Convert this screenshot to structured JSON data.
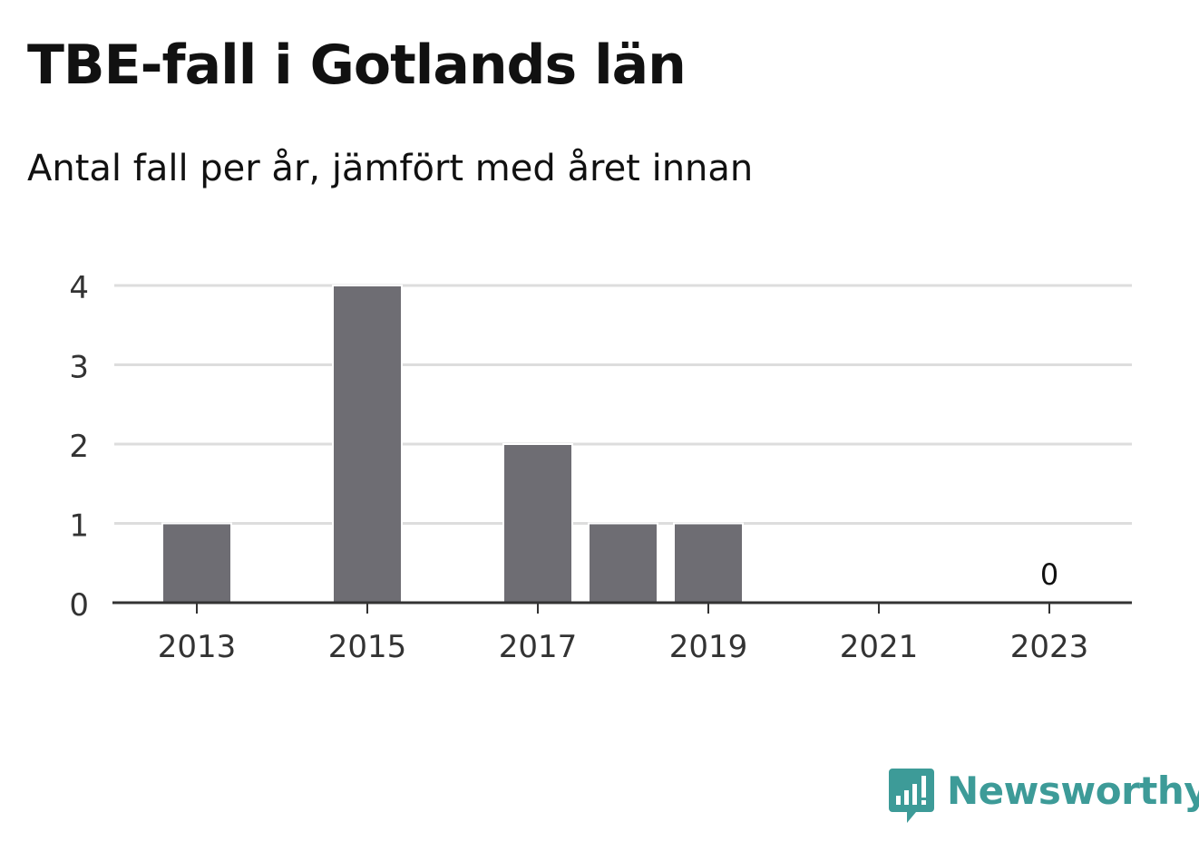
{
  "header": {
    "title": "TBE-fall i Gotlands län",
    "subtitle": "Antal fall per år, jämfört med året innan"
  },
  "chart_data": {
    "type": "bar",
    "title": "TBE-fall i Gotlands län",
    "subtitle": "Antal fall per år, jämfört med året innan",
    "categories": [
      2013,
      2014,
      2015,
      2016,
      2017,
      2018,
      2019,
      2020,
      2021,
      2022,
      2023
    ],
    "values": [
      1,
      0,
      4,
      0,
      2,
      1,
      1,
      0,
      0,
      0,
      0
    ],
    "xticks": [
      "2013",
      "2015",
      "2017",
      "2019",
      "2021",
      "2023"
    ],
    "yticks": [
      0,
      1,
      2,
      3,
      4
    ],
    "ylim": [
      0,
      4
    ],
    "xlabel": "",
    "ylabel": "",
    "grid": true,
    "bar_color": "#6e6d73",
    "grid_color": "#dddddd",
    "annotations": [
      {
        "x": 2023,
        "text": "0"
      }
    ]
  },
  "brand": {
    "name": "Newsworthy",
    "color": "#3d9b98",
    "icon": "bar-chart-speech-bubble-icon"
  }
}
